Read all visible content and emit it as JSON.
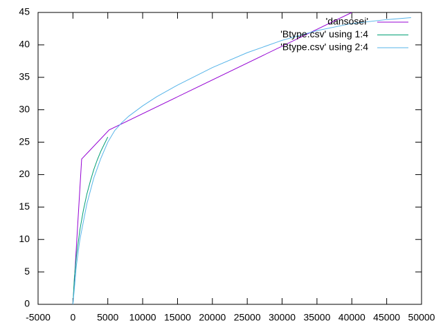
{
  "chart_data": {
    "type": "line",
    "series": [
      {
        "name": "'dansosei'",
        "color": "#9400d3",
        "x": [
          0,
          1250,
          5200,
          40000
        ],
        "values": [
          0,
          22.4,
          26.9,
          45
        ]
      },
      {
        "name": "'Btype.csv' using 1:4",
        "color": "#009e73",
        "x": [
          0,
          200,
          500,
          1000,
          1500,
          2000,
          2500,
          3000,
          3500,
          4000,
          4500,
          5000
        ],
        "values": [
          0,
          4,
          7.5,
          11.5,
          14.5,
          17,
          19,
          20.8,
          22.3,
          23.6,
          24.7,
          25.8
        ]
      },
      {
        "name": "'Btype.csv' using 2:4",
        "color": "#56b4e9",
        "x": [
          0,
          500,
          1000,
          2000,
          3000,
          4000,
          5000,
          6000,
          7000,
          8000,
          10000,
          12000,
          15000,
          20000,
          25000,
          30000,
          35000,
          40000,
          45000,
          48500
        ],
        "values": [
          0,
          6,
          10,
          15.5,
          19.5,
          22.5,
          25,
          26.8,
          28,
          29,
          30.6,
          32,
          33.8,
          36.5,
          38.8,
          40.7,
          42.2,
          43.3,
          43.9,
          44.2
        ]
      }
    ],
    "xlim": [
      -5000,
      50000
    ],
    "xticks": [
      -5000,
      0,
      5000,
      10000,
      15000,
      20000,
      25000,
      30000,
      35000,
      40000,
      45000,
      50000
    ],
    "ylim": [
      0,
      45
    ],
    "yticks": [
      0,
      5,
      10,
      15,
      20,
      25,
      30,
      35,
      40,
      45
    ],
    "grid": false,
    "legend": "top-right"
  }
}
